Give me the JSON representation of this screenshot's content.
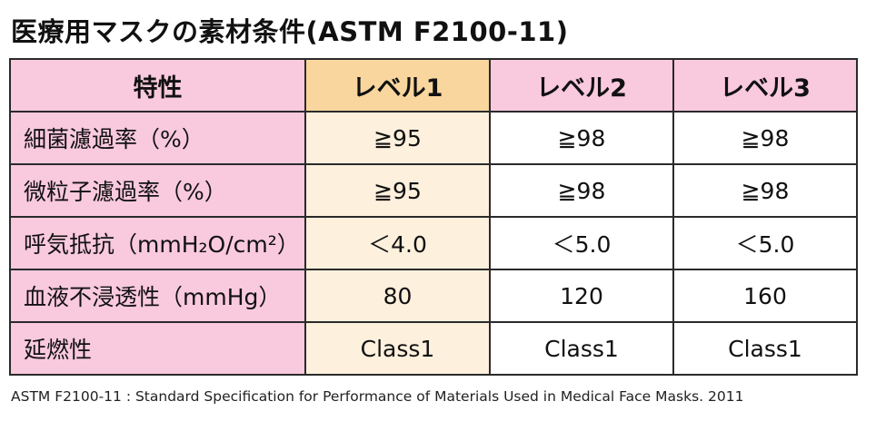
{
  "header": {
    "title": "医療用マスクの素材条件(ASTM F2100-11)"
  },
  "table": {
    "columns": [
      "特性",
      "レベル1",
      "レベル2",
      "レベル3"
    ],
    "rows": [
      [
        "細菌濾過率（%）",
        "≧95",
        "≧98",
        "≧98"
      ],
      [
        "微粒子濾過率（%）",
        "≧95",
        "≧98",
        "≧98"
      ],
      [
        "呼気抵抗（mmH₂O/cm²）",
        "＜4.0",
        "＜5.0",
        "＜5.0"
      ],
      [
        "血液不浸透性（mmHg）",
        "80",
        "120",
        "160"
      ],
      [
        "延燃性",
        "Class1",
        "Class1",
        "Class1"
      ]
    ]
  },
  "footer": {
    "note": "ASTM F2100-11 : Standard Specification for Performance of Materials Used in Medical Face Masks. 2011"
  }
}
